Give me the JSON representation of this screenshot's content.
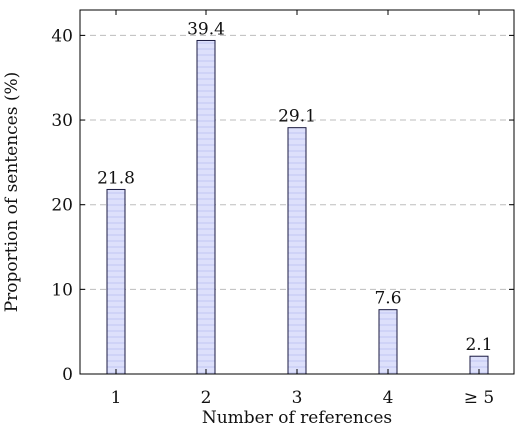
{
  "chart_data": {
    "type": "bar",
    "categories": [
      "1",
      "2",
      "3",
      "4",
      "≥ 5"
    ],
    "values": [
      21.8,
      39.4,
      29.1,
      7.6,
      2.1
    ],
    "data_labels": [
      "21.8",
      "39.4",
      "29.1",
      "7.6",
      "2.1"
    ],
    "title": "",
    "xlabel": "Number of references",
    "ylabel": "Proportion of sentences (%)",
    "ylim": [
      0,
      43
    ],
    "yticks": [
      0,
      10,
      20,
      30,
      40
    ],
    "ytick_labels": [
      "0",
      "10",
      "20",
      "30",
      "40"
    ],
    "grid": "horizontal dashed",
    "legend": "none",
    "bar_fill": "#dde0fb",
    "bar_stripe": "#cfd3f7",
    "bar_stroke": "#1a1a40",
    "grid_color": "#bdbdbd"
  }
}
